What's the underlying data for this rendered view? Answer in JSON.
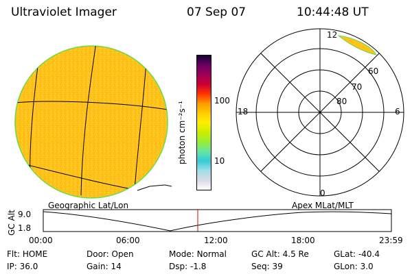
{
  "header": {
    "instrument": "Ultraviolet Imager",
    "date": "07 Sep 07",
    "time": "10:44:48 UT"
  },
  "colorbar": {
    "unit_label": "photon cm⁻²s⁻¹",
    "ticks": [
      "100",
      "10"
    ],
    "colors": [
      "#ffffff",
      "#d9d9e6",
      "#9fdfe6",
      "#33ccd9",
      "#66e6a0",
      "#99ee33",
      "#ccee00",
      "#ffee00",
      "#ffcc00",
      "#ff9900",
      "#ff3300",
      "#cc0033",
      "#a0005a",
      "#6a0066",
      "#1a0033"
    ]
  },
  "globe_panel": {
    "caption": "Geographic Lat/Lon"
  },
  "polar_panel": {
    "caption": "Apex  MLat/MLT",
    "mlt_labels": {
      "top": "12",
      "left": "18",
      "right": "6",
      "bottom": "0"
    },
    "lat_labels": [
      "60",
      "70",
      "80"
    ]
  },
  "altitude_strip": {
    "axis_label": "GC Alt",
    "y_ticks": [
      "9.0",
      "1.8"
    ],
    "x_ticks": [
      "00:00",
      "06:00",
      "12:00",
      "18:00",
      "23:59"
    ],
    "marker_time": "10:44:48"
  },
  "status": {
    "row1": [
      {
        "label": "Flt:",
        "value": "HOME"
      },
      {
        "label": "Door:",
        "value": "Open"
      },
      {
        "label": "Mode:",
        "value": "Normal"
      },
      {
        "label": "GC Alt:",
        "value": "4.5 Re"
      },
      {
        "label": "GLat:",
        "value": "-40.4"
      }
    ],
    "row2": [
      {
        "label": "IP:",
        "value": "36.0"
      },
      {
        "label": "Gain:",
        "value": "14"
      },
      {
        "label": "Dsp:",
        "value": "-1.8"
      },
      {
        "label": "Seq:",
        "value": "39"
      },
      {
        "label": "GLon:",
        "value": "3.0"
      }
    ]
  }
}
